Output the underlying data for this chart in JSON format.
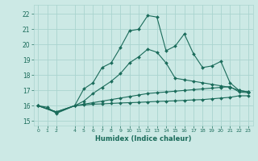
{
  "xlabel": "Humidex (Indice chaleur)",
  "ylabel": "",
  "xlim": [
    -0.5,
    23.5
  ],
  "ylim": [
    14.7,
    22.6
  ],
  "yticks": [
    15,
    16,
    17,
    18,
    19,
    20,
    21,
    22
  ],
  "xticks": [
    0,
    1,
    2,
    4,
    5,
    6,
    7,
    8,
    9,
    10,
    11,
    12,
    13,
    14,
    15,
    16,
    17,
    18,
    19,
    20,
    21,
    22,
    23
  ],
  "background_color": "#cce9e5",
  "grid_color": "#aad4cf",
  "line_color": "#1a6b5a",
  "lines": [
    {
      "x": [
        0,
        1,
        2,
        4,
        5,
        6,
        7,
        8,
        9,
        10,
        11,
        12,
        13,
        14,
        15,
        16,
        17,
        18,
        19,
        20,
        21,
        22,
        23
      ],
      "y": [
        16.0,
        15.9,
        15.5,
        16.0,
        17.1,
        17.5,
        18.5,
        18.8,
        19.8,
        20.9,
        21.0,
        21.9,
        21.8,
        19.6,
        19.9,
        20.7,
        19.4,
        18.5,
        18.6,
        18.9,
        17.5,
        17.0,
        16.9
      ]
    },
    {
      "x": [
        0,
        2,
        4,
        5,
        6,
        7,
        8,
        9,
        10,
        11,
        12,
        13,
        14,
        15,
        16,
        17,
        18,
        19,
        20,
        21,
        22,
        23
      ],
      "y": [
        16.0,
        15.6,
        16.0,
        16.3,
        16.8,
        17.2,
        17.6,
        18.1,
        18.8,
        19.2,
        19.7,
        19.5,
        18.8,
        17.8,
        17.7,
        17.6,
        17.5,
        17.4,
        17.3,
        17.2,
        17.0,
        16.9
      ]
    },
    {
      "x": [
        0,
        2,
        4,
        5,
        6,
        7,
        8,
        9,
        10,
        11,
        12,
        13,
        14,
        15,
        16,
        17,
        18,
        19,
        20,
        21,
        22,
        23
      ],
      "y": [
        16.0,
        15.6,
        16.0,
        16.1,
        16.2,
        16.3,
        16.4,
        16.5,
        16.6,
        16.7,
        16.8,
        16.85,
        16.9,
        16.95,
        17.0,
        17.05,
        17.1,
        17.15,
        17.2,
        17.25,
        16.9,
        16.85
      ]
    },
    {
      "x": [
        0,
        2,
        4,
        5,
        6,
        7,
        8,
        9,
        10,
        11,
        12,
        13,
        14,
        15,
        16,
        17,
        18,
        19,
        20,
        21,
        22,
        23
      ],
      "y": [
        16.0,
        15.55,
        16.0,
        16.05,
        16.1,
        16.12,
        16.15,
        16.18,
        16.2,
        16.22,
        16.25,
        16.28,
        16.3,
        16.32,
        16.35,
        16.38,
        16.4,
        16.45,
        16.5,
        16.55,
        16.65,
        16.65
      ]
    }
  ]
}
